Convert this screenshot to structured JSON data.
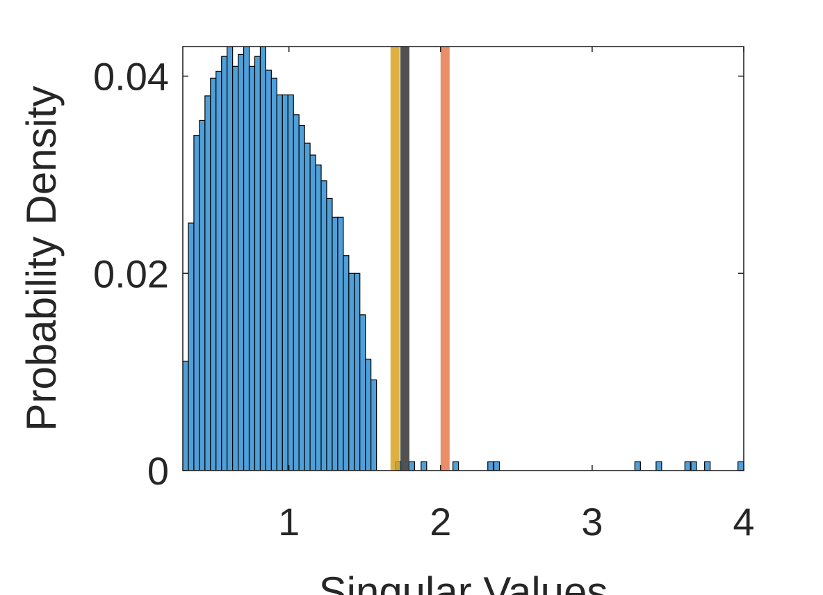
{
  "chart_data": {
    "type": "bar",
    "xlabel": "Singular Values",
    "ylabel": "Probability Density",
    "xlim": [
      0.3,
      4.0
    ],
    "ylim": [
      0,
      0.043
    ],
    "xticks": [
      1,
      2,
      3,
      4
    ],
    "xtick_labels": [
      "1",
      "2",
      "3",
      "4"
    ],
    "yticks": [
      0,
      0.02,
      0.04
    ],
    "ytick_labels": [
      "0",
      "0.02",
      "0.04"
    ],
    "grid": false,
    "box": true,
    "bin_width": 0.0365,
    "bins_start": 0.3,
    "values": [
      0.0111,
      0.0251,
      0.034,
      0.0355,
      0.038,
      0.0398,
      0.0405,
      0.042,
      0.0445,
      0.041,
      0.0422,
      0.0445,
      0.041,
      0.042,
      0.0445,
      0.0406,
      0.0398,
      0.0381,
      0.0381,
      0.0381,
      0.0361,
      0.035,
      0.0332,
      0.032,
      0.031,
      0.0294,
      0.0276,
      0.0257,
      0.0257,
      0.0218,
      0.02,
      0.02,
      0.0158,
      0.0113,
      0.0092
    ],
    "outliers": [
      {
        "x": 1.72,
        "y": 0.0009
      },
      {
        "x": 1.81,
        "y": 0.0009
      },
      {
        "x": 1.89,
        "y": 0.0009
      },
      {
        "x": 2.1,
        "y": 0.0009
      },
      {
        "x": 2.33,
        "y": 0.0009
      },
      {
        "x": 2.37,
        "y": 0.0009
      },
      {
        "x": 3.3,
        "y": 0.0009
      },
      {
        "x": 3.44,
        "y": 0.0009
      },
      {
        "x": 3.63,
        "y": 0.0009
      },
      {
        "x": 3.67,
        "y": 0.0009
      },
      {
        "x": 3.76,
        "y": 0.0009
      },
      {
        "x": 3.98,
        "y": 0.0009
      }
    ],
    "bar_color": "#4f9fd8",
    "bar_edge": "#000000",
    "vlines": [
      {
        "x": 1.7,
        "color": "#d9a21f",
        "alpha": 0.85
      },
      {
        "x": 1.765,
        "color": "#333333",
        "alpha": 0.85
      },
      {
        "x": 2.03,
        "color": "#e67a4f",
        "alpha": 0.85
      }
    ]
  }
}
